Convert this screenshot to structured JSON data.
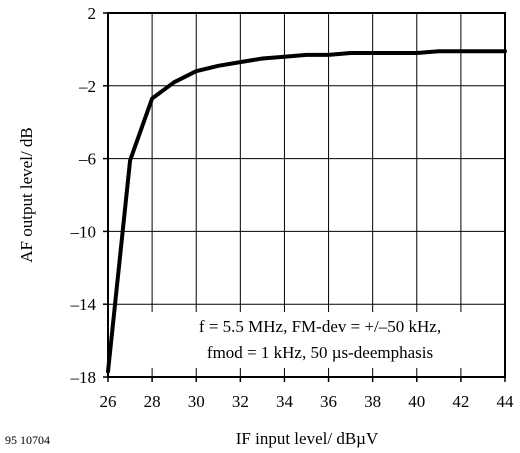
{
  "figure_id": "95 10704",
  "chart_data": {
    "type": "line",
    "title": "",
    "xlabel": "IF input level/ dBµV",
    "ylabel": "AF output level/ dB",
    "xlim": [
      26,
      44
    ],
    "ylim": [
      -18,
      2
    ],
    "x_ticks": [
      26,
      28,
      30,
      32,
      34,
      36,
      38,
      40,
      42,
      44
    ],
    "y_ticks": [
      2,
      -2,
      -6,
      -10,
      -14,
      -18
    ],
    "x_tick_labels": [
      "26",
      "28",
      "30",
      "32",
      "34",
      "36",
      "38",
      "40",
      "42",
      "44"
    ],
    "y_tick_labels": [
      "2",
      "–2",
      "–6",
      "–10",
      "–14",
      "–18"
    ],
    "grid": true,
    "annotation": [
      "f = 5.5 MHz, FM-dev = +/–50 kHz,",
      "fmod = 1 kHz, 50 µs-deemphasis"
    ],
    "series": [
      {
        "x": [
          26.0,
          27.0,
          28.0,
          29.0,
          30.0,
          31.0,
          32.0,
          33.0,
          34.0,
          35.0,
          36.0,
          37.0,
          38.0,
          39.0,
          40.0,
          41.0,
          42.0,
          43.0,
          44.0
        ],
        "y": [
          -17.7,
          -6.1,
          -2.7,
          -1.8,
          -1.2,
          -0.9,
          -0.7,
          -0.5,
          -0.4,
          -0.3,
          -0.3,
          -0.2,
          -0.2,
          -0.2,
          -0.2,
          -0.1,
          -0.1,
          -0.1,
          -0.1
        ]
      }
    ]
  }
}
